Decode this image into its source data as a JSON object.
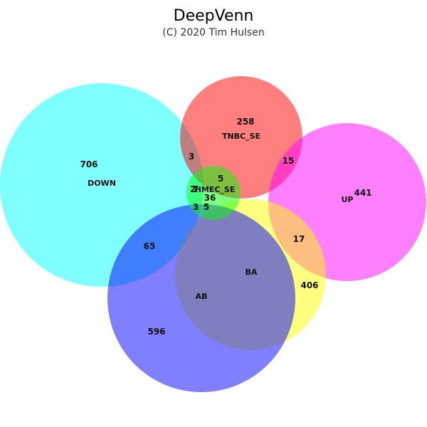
{
  "header": {
    "title": "DeepVenn",
    "subtitle": "(C) 2020 Tim Hulsen"
  },
  "sets": [
    {
      "key": "down",
      "name": "DOWN",
      "color": "#00ffff"
    },
    {
      "key": "tnbc",
      "name": "TNBC_SE",
      "color": "#ff0000"
    },
    {
      "key": "up",
      "name": "UP",
      "color": "#ff00ff"
    },
    {
      "key": "ba",
      "name": "BA",
      "color": "#ffff00"
    },
    {
      "key": "ab",
      "name": "AB",
      "color": "#0000ff"
    },
    {
      "key": "hmec",
      "name": "HMEC_SE",
      "color": "#00ff00"
    }
  ],
  "regions": {
    "down_only": "706",
    "tnbc_only": "258",
    "up_only": "441",
    "down_tnbc": "3",
    "tnbc_up": "15",
    "tnbc_hmec": "5",
    "hmec_only": "36",
    "hmec_a": "2",
    "hmec_b": "7",
    "hmec_ab": "3",
    "hmec_ba": "5",
    "down_ab": "65",
    "up_ba": "17",
    "ba_only": "406",
    "ab_only": "596"
  }
}
